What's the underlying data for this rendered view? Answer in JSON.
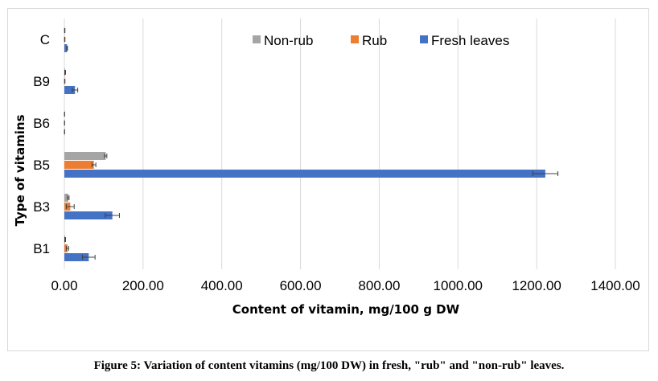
{
  "caption": "Figure 5: Variation of content vitamins (mg/100 DW) in fresh, \"rub\" and \"non-rub\" leaves.",
  "chart_data": {
    "type": "bar",
    "orientation": "horizontal",
    "title": "",
    "xlabel": "Content of vitamin, mg/100 g DW",
    "ylabel": "Type of vitamins",
    "xlim": [
      0,
      1400
    ],
    "xticks": [
      0,
      200,
      400,
      600,
      800,
      1000,
      1200,
      1400
    ],
    "xtick_labels": [
      "0.00",
      "200.00",
      "400.00",
      "600.00",
      "800.00",
      "1000.00",
      "1200.00",
      "1400.00"
    ],
    "grid": "vertical",
    "legend_position": "top",
    "categories": [
      "B1",
      "B3",
      "B5",
      "B6",
      "B9",
      "C"
    ],
    "series": [
      {
        "name": "Non-rub",
        "color": "#a5a5a5",
        "values": [
          2,
          10,
          105,
          0.5,
          2,
          1
        ],
        "errors": [
          1,
          2,
          3,
          0.2,
          1,
          0.5
        ]
      },
      {
        "name": "Rub",
        "color": "#ed7d31",
        "values": [
          8,
          15,
          75,
          0.5,
          1,
          1
        ],
        "errors": [
          3,
          10,
          5,
          0.2,
          0.5,
          0.5
        ]
      },
      {
        "name": "Fresh leaves",
        "color": "#4472c4",
        "values": [
          62,
          122,
          1222,
          0.5,
          27,
          7
        ],
        "errors": [
          16,
          18,
          32,
          0.3,
          7,
          1
        ]
      }
    ]
  }
}
